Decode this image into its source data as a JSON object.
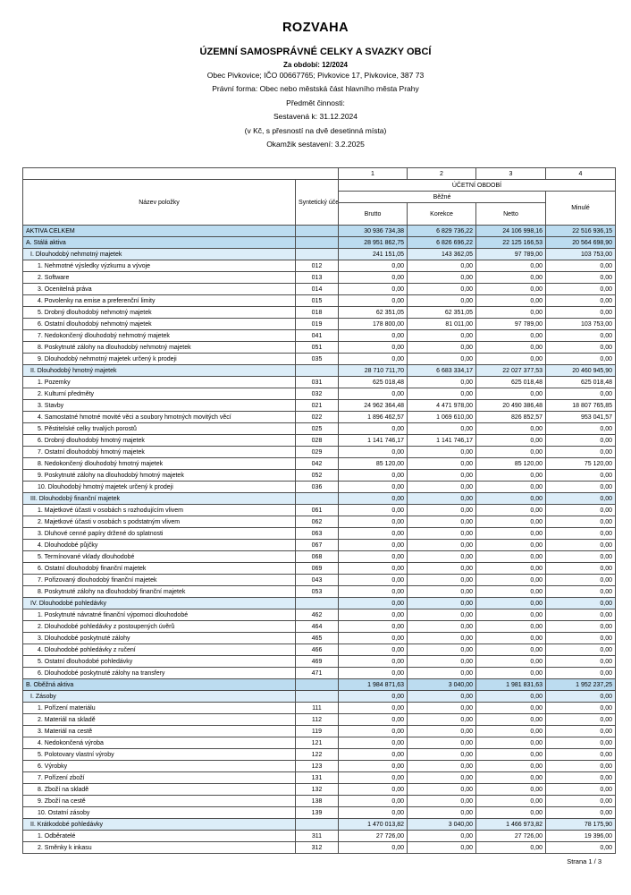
{
  "header": {
    "title": "ROZVAHA",
    "subtitle": "ÚZEMNÍ SAMOSPRÁVNÉ CELKY A SVAZKY OBCÍ",
    "period": "Za období: 12/2024",
    "entity": "Obec Pivkovice; IČO 00667765; Pivkovice 17, Pivkovice, 387 73",
    "legal_form": "Právní forma: Obec nebo městská část hlavního města Prahy",
    "activity": "Předmět činnosti:",
    "compiled_to": "Sestavená k: 31.12.2024",
    "precision_note": "(v Kč, s přesností na dvě desetinná místa)",
    "created_at": "Okamžik sestavení: 3.2.2025"
  },
  "colors": {
    "main_row_bg": "#bcdcf0",
    "sub_row_bg": "#dcedf8",
    "border": "#4d4d4d"
  },
  "table": {
    "col_numbers": [
      "1",
      "2",
      "3",
      "4"
    ],
    "header": {
      "name_col": "Název položky",
      "account_col": "Syntetický účet",
      "period_group": "ÚČETNÍ OBDOBÍ",
      "current_group": "Běžné",
      "current_cols": [
        "Brutto",
        "Korekce",
        "Netto"
      ],
      "previous_col": "Minulé"
    },
    "rows": [
      {
        "type": "main",
        "label": "AKTIVA CELKEM",
        "account": "",
        "values": [
          "30 936 734,38",
          "6 829 736,22",
          "24 106 998,16",
          "22 516 936,15"
        ]
      },
      {
        "type": "main",
        "label": "A. Stálá aktiva",
        "account": "",
        "values": [
          "28 951 862,75",
          "6 826 696,22",
          "22 125 166,53",
          "20 564 698,90"
        ]
      },
      {
        "type": "sub",
        "label": "I. Dlouhodobý nehmotný majetek",
        "account": "",
        "values": [
          "241 151,05",
          "143 362,05",
          "97 789,00",
          "103 753,00"
        ]
      },
      {
        "type": "item",
        "label": "1. Nehmotné výsledky výzkumu a vývoje",
        "account": "012",
        "values": [
          "0,00",
          "0,00",
          "0,00",
          "0,00"
        ]
      },
      {
        "type": "item",
        "label": "2. Software",
        "account": "013",
        "values": [
          "0,00",
          "0,00",
          "0,00",
          "0,00"
        ]
      },
      {
        "type": "item",
        "label": "3. Ocenitelná práva",
        "account": "014",
        "values": [
          "0,00",
          "0,00",
          "0,00",
          "0,00"
        ]
      },
      {
        "type": "item",
        "label": "4. Povolenky na emise a preferenční limity",
        "account": "015",
        "values": [
          "0,00",
          "0,00",
          "0,00",
          "0,00"
        ]
      },
      {
        "type": "item",
        "label": "5. Drobný dlouhodobý nehmotný majetek",
        "account": "018",
        "values": [
          "62 351,05",
          "62 351,05",
          "0,00",
          "0,00"
        ]
      },
      {
        "type": "item",
        "label": "6. Ostatní dlouhodobý nehmotný majetek",
        "account": "019",
        "values": [
          "178 800,00",
          "81 011,00",
          "97 789,00",
          "103 753,00"
        ]
      },
      {
        "type": "item",
        "label": "7. Nedokončený dlouhodobý nehmotný majetek",
        "account": "041",
        "values": [
          "0,00",
          "0,00",
          "0,00",
          "0,00"
        ]
      },
      {
        "type": "item",
        "label": "8. Poskytnuté zálohy na dlouhodobý nehmotný majetek",
        "account": "051",
        "values": [
          "0,00",
          "0,00",
          "0,00",
          "0,00"
        ]
      },
      {
        "type": "item",
        "label": "9. Dlouhodobý nehmotný majetek určený k prodeji",
        "account": "035",
        "values": [
          "0,00",
          "0,00",
          "0,00",
          "0,00"
        ]
      },
      {
        "type": "sub",
        "label": "II. Dlouhodobý hmotný majetek",
        "account": "",
        "values": [
          "28 710 711,70",
          "6 683 334,17",
          "22 027 377,53",
          "20 460 945,90"
        ]
      },
      {
        "type": "item",
        "label": "1. Pozemky",
        "account": "031",
        "values": [
          "625 018,48",
          "0,00",
          "625 018,48",
          "625 018,48"
        ]
      },
      {
        "type": "item",
        "label": "2. Kulturní předměty",
        "account": "032",
        "values": [
          "0,00",
          "0,00",
          "0,00",
          "0,00"
        ]
      },
      {
        "type": "item",
        "label": "3. Stavby",
        "account": "021",
        "values": [
          "24 962 364,48",
          "4 471 978,00",
          "20 490 386,48",
          "18 807 765,85"
        ]
      },
      {
        "type": "item",
        "label": "4. Samostatné hmotné movité věci a soubory hmotných movitých věcí",
        "account": "022",
        "values": [
          "1 896 462,57",
          "1 069 610,00",
          "826 852,57",
          "953 041,57"
        ]
      },
      {
        "type": "item",
        "label": "5. Pěstitelské celky trvalých porostů",
        "account": "025",
        "values": [
          "0,00",
          "0,00",
          "0,00",
          "0,00"
        ]
      },
      {
        "type": "item",
        "label": "6. Drobný dlouhodobý hmotný majetek",
        "account": "028",
        "values": [
          "1 141 746,17",
          "1 141 746,17",
          "0,00",
          "0,00"
        ]
      },
      {
        "type": "item",
        "label": "7. Ostatní dlouhodobý hmotný majetek",
        "account": "029",
        "values": [
          "0,00",
          "0,00",
          "0,00",
          "0,00"
        ]
      },
      {
        "type": "item",
        "label": "8. Nedokončený dlouhodobý hmotný majetek",
        "account": "042",
        "values": [
          "85 120,00",
          "0,00",
          "85 120,00",
          "75 120,00"
        ]
      },
      {
        "type": "item",
        "label": "9. Poskytnuté zálohy na dlouhodobý hmotný majetek",
        "account": "052",
        "values": [
          "0,00",
          "0,00",
          "0,00",
          "0,00"
        ]
      },
      {
        "type": "item",
        "label": "10. Dlouhodobý hmotný majetek určený k prodeji",
        "account": "036",
        "values": [
          "0,00",
          "0,00",
          "0,00",
          "0,00"
        ]
      },
      {
        "type": "sub",
        "label": "III. Dlouhodobý finanční majetek",
        "account": "",
        "values": [
          "0,00",
          "0,00",
          "0,00",
          "0,00"
        ]
      },
      {
        "type": "item",
        "label": "1. Majetkové účasti v osobách s rozhodujícím vlivem",
        "account": "061",
        "values": [
          "0,00",
          "0,00",
          "0,00",
          "0,00"
        ]
      },
      {
        "type": "item",
        "label": "2. Majetkové účasti v osobách s podstatným vlivem",
        "account": "062",
        "values": [
          "0,00",
          "0,00",
          "0,00",
          "0,00"
        ]
      },
      {
        "type": "item",
        "label": "3. Dluhové cenné papíry držené do splatnosti",
        "account": "063",
        "values": [
          "0,00",
          "0,00",
          "0,00",
          "0,00"
        ]
      },
      {
        "type": "item",
        "label": "4. Dlouhodobé půjčky",
        "account": "067",
        "values": [
          "0,00",
          "0,00",
          "0,00",
          "0,00"
        ]
      },
      {
        "type": "item",
        "label": "5. Termínované vklady dlouhodobé",
        "account": "068",
        "values": [
          "0,00",
          "0,00",
          "0,00",
          "0,00"
        ]
      },
      {
        "type": "item",
        "label": "6. Ostatní dlouhodobý finanční majetek",
        "account": "069",
        "values": [
          "0,00",
          "0,00",
          "0,00",
          "0,00"
        ]
      },
      {
        "type": "item",
        "label": "7. Pořizovaný dlouhodobý finanční majetek",
        "account": "043",
        "values": [
          "0,00",
          "0,00",
          "0,00",
          "0,00"
        ]
      },
      {
        "type": "item",
        "label": "8. Poskytnuté zálohy na dlouhodobý finanční majetek",
        "account": "053",
        "values": [
          "0,00",
          "0,00",
          "0,00",
          "0,00"
        ]
      },
      {
        "type": "sub",
        "label": "IV. Dlouhodobé pohledávky",
        "account": "",
        "values": [
          "0,00",
          "0,00",
          "0,00",
          "0,00"
        ]
      },
      {
        "type": "item",
        "label": "1. Poskytnuté návratné finanční výpomoci dlouhodobé",
        "account": "462",
        "values": [
          "0,00",
          "0,00",
          "0,00",
          "0,00"
        ]
      },
      {
        "type": "item",
        "label": "2. Dlouhodobé pohledávky z postoupených úvěrů",
        "account": "464",
        "values": [
          "0,00",
          "0,00",
          "0,00",
          "0,00"
        ]
      },
      {
        "type": "item",
        "label": "3. Dlouhodobé poskytnuté zálohy",
        "account": "465",
        "values": [
          "0,00",
          "0,00",
          "0,00",
          "0,00"
        ]
      },
      {
        "type": "item",
        "label": "4. Dlouhodobé pohledávky z ručení",
        "account": "466",
        "values": [
          "0,00",
          "0,00",
          "0,00",
          "0,00"
        ]
      },
      {
        "type": "item",
        "label": "5. Ostatní dlouhodobé pohledávky",
        "account": "469",
        "values": [
          "0,00",
          "0,00",
          "0,00",
          "0,00"
        ]
      },
      {
        "type": "item",
        "label": "6. Dlouhodobé poskytnuté zálohy na transfery",
        "account": "471",
        "values": [
          "0,00",
          "0,00",
          "0,00",
          "0,00"
        ]
      },
      {
        "type": "main",
        "label": "B. Oběžná aktiva",
        "account": "",
        "values": [
          "1 984 871,63",
          "3 040,00",
          "1 981 831,63",
          "1 952 237,25"
        ]
      },
      {
        "type": "sub",
        "label": "I. Zásoby",
        "account": "",
        "values": [
          "0,00",
          "0,00",
          "0,00",
          "0,00"
        ]
      },
      {
        "type": "item",
        "label": "1. Pořízení materiálu",
        "account": "111",
        "values": [
          "0,00",
          "0,00",
          "0,00",
          "0,00"
        ]
      },
      {
        "type": "item",
        "label": "2. Materiál na skladě",
        "account": "112",
        "values": [
          "0,00",
          "0,00",
          "0,00",
          "0,00"
        ]
      },
      {
        "type": "item",
        "label": "3. Materiál na cestě",
        "account": "119",
        "values": [
          "0,00",
          "0,00",
          "0,00",
          "0,00"
        ]
      },
      {
        "type": "item",
        "label": "4. Nedokončená výroba",
        "account": "121",
        "values": [
          "0,00",
          "0,00",
          "0,00",
          "0,00"
        ]
      },
      {
        "type": "item",
        "label": "5. Polotovary vlastní výroby",
        "account": "122",
        "values": [
          "0,00",
          "0,00",
          "0,00",
          "0,00"
        ]
      },
      {
        "type": "item",
        "label": "6. Výrobky",
        "account": "123",
        "values": [
          "0,00",
          "0,00",
          "0,00",
          "0,00"
        ]
      },
      {
        "type": "item",
        "label": "7. Pořízení zboží",
        "account": "131",
        "values": [
          "0,00",
          "0,00",
          "0,00",
          "0,00"
        ]
      },
      {
        "type": "item",
        "label": "8. Zboží na skladě",
        "account": "132",
        "values": [
          "0,00",
          "0,00",
          "0,00",
          "0,00"
        ]
      },
      {
        "type": "item",
        "label": "9. Zboží na cestě",
        "account": "138",
        "values": [
          "0,00",
          "0,00",
          "0,00",
          "0,00"
        ]
      },
      {
        "type": "item",
        "label": "10. Ostatní zásoby",
        "account": "139",
        "values": [
          "0,00",
          "0,00",
          "0,00",
          "0,00"
        ]
      },
      {
        "type": "sub",
        "label": "II. Krátkodobé pohledávky",
        "account": "",
        "values": [
          "1 470 013,82",
          "3 040,00",
          "1 466 973,82",
          "78 175,90"
        ]
      },
      {
        "type": "item",
        "label": "1. Odběratelé",
        "account": "311",
        "values": [
          "27 726,00",
          "0,00",
          "27 726,00",
          "19 396,00"
        ]
      },
      {
        "type": "item",
        "label": "2. Směnky k inkasu",
        "account": "312",
        "values": [
          "0,00",
          "0,00",
          "0,00",
          "0,00"
        ]
      }
    ]
  },
  "footer": {
    "page": "Strana 1 / 3"
  }
}
